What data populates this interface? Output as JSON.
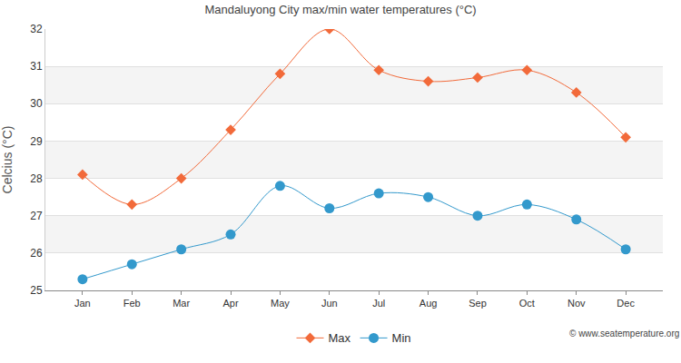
{
  "chart_data": {
    "type": "line",
    "title": "Mandaluyong City max/min water temperatures (°C)",
    "y_label": "Celcius (°C)",
    "categories": [
      "Jan",
      "Feb",
      "Mar",
      "Apr",
      "May",
      "Jun",
      "Jul",
      "Aug",
      "Sep",
      "Oct",
      "Nov",
      "Dec"
    ],
    "series": [
      {
        "name": "Max",
        "color": "#f26a3a",
        "marker": "diamond",
        "line_style": "solid",
        "values": [
          28.1,
          27.3,
          28.0,
          29.3,
          30.8,
          32.0,
          30.9,
          30.6,
          30.7,
          30.9,
          30.3,
          29.1
        ]
      },
      {
        "name": "Min",
        "color": "#3399cc",
        "marker": "circle",
        "line_style": "solid",
        "values": [
          25.3,
          25.7,
          26.1,
          26.5,
          27.8,
          27.2,
          27.6,
          27.5,
          27.0,
          27.3,
          26.9,
          26.1
        ]
      }
    ],
    "ylim": [
      25,
      32
    ],
    "yticks": [
      25,
      26,
      27,
      28,
      29,
      30,
      31,
      32
    ],
    "grid": true,
    "legend": "bottom",
    "annotations": [
      "© www.seatemperature.org"
    ]
  }
}
